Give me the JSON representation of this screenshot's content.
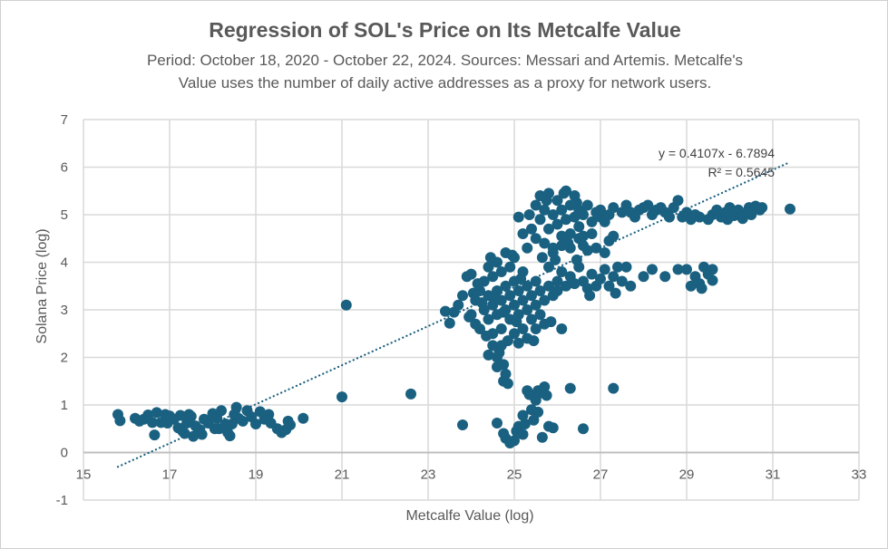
{
  "chart_data": {
    "type": "scatter",
    "title": "Regression of SOL's Price on Its Metcalfe Value",
    "subtitle_line1": "Period: October 18, 2020 - October 22, 2024. Sources: Messari and Artemis. Metcalfe's",
    "subtitle_line2": "Value uses the number of daily active addresses as a proxy for network users.",
    "xlabel": "Metcalfe Value (log)",
    "ylabel": "Solana Price (log)",
    "xlim": [
      15,
      33
    ],
    "ylim": [
      -1,
      7
    ],
    "xticks": [
      "15",
      "17",
      "19",
      "21",
      "23",
      "25",
      "27",
      "29",
      "31",
      "33"
    ],
    "yticks": [
      "-1",
      "0",
      "1",
      "2",
      "3",
      "4",
      "5",
      "6",
      "7"
    ],
    "grid": true,
    "marker_color": "#1a6080",
    "trendline": {
      "type": "linear",
      "slope": 0.4107,
      "intercept": -6.7894,
      "equation": "y = 0.4107x - 6.7894",
      "r2_label": "R² = 0.5645",
      "style": "dotted"
    },
    "points": [
      [
        15.8,
        0.8
      ],
      [
        15.85,
        0.67
      ],
      [
        16.2,
        0.72
      ],
      [
        16.3,
        0.66
      ],
      [
        16.4,
        0.7
      ],
      [
        16.5,
        0.79
      ],
      [
        16.6,
        0.63
      ],
      [
        16.65,
        0.37
      ],
      [
        16.7,
        0.84
      ],
      [
        16.8,
        0.63
      ],
      [
        16.9,
        0.8
      ],
      [
        17.0,
        0.77
      ],
      [
        17.1,
        0.7
      ],
      [
        17.2,
        0.52
      ],
      [
        17.25,
        0.78
      ],
      [
        17.3,
        0.45
      ],
      [
        17.35,
        0.4
      ],
      [
        17.4,
        0.62
      ],
      [
        17.5,
        0.76
      ],
      [
        17.6,
        0.56
      ],
      [
        17.7,
        0.48
      ],
      [
        17.75,
        0.38
      ],
      [
        17.8,
        0.7
      ],
      [
        17.9,
        0.62
      ],
      [
        18.0,
        0.82
      ],
      [
        18.05,
        0.5
      ],
      [
        18.1,
        0.72
      ],
      [
        18.2,
        0.88
      ],
      [
        18.3,
        0.6
      ],
      [
        18.35,
        0.42
      ],
      [
        18.4,
        0.35
      ],
      [
        18.5,
        0.8
      ],
      [
        18.55,
        0.95
      ],
      [
        18.6,
        0.72
      ],
      [
        18.7,
        0.66
      ],
      [
        18.8,
        0.88
      ],
      [
        18.9,
        0.75
      ],
      [
        19.0,
        0.6
      ],
      [
        19.1,
        0.86
      ],
      [
        19.2,
        0.7
      ],
      [
        19.3,
        0.8
      ],
      [
        19.35,
        0.62
      ],
      [
        19.5,
        0.5
      ],
      [
        19.6,
        0.42
      ],
      [
        19.7,
        0.48
      ],
      [
        19.75,
        0.66
      ],
      [
        19.8,
        0.58
      ],
      [
        20.1,
        0.72
      ],
      [
        18.15,
        0.5
      ],
      [
        17.55,
        0.34
      ],
      [
        18.45,
        0.6
      ],
      [
        16.95,
        0.62
      ],
      [
        17.45,
        0.8
      ],
      [
        21.0,
        1.17
      ],
      [
        21.1,
        3.1
      ],
      [
        22.6,
        1.23
      ],
      [
        23.8,
        0.58
      ],
      [
        26.3,
        1.35
      ],
      [
        27.3,
        1.35
      ],
      [
        26.6,
        0.5
      ],
      [
        31.4,
        5.12
      ],
      [
        24.6,
        0.62
      ],
      [
        24.75,
        0.4
      ],
      [
        24.8,
        0.3
      ],
      [
        24.9,
        0.2
      ],
      [
        25.0,
        0.25
      ],
      [
        25.05,
        0.45
      ],
      [
        25.1,
        0.55
      ],
      [
        25.2,
        0.38
      ],
      [
        25.2,
        0.78
      ],
      [
        25.3,
        1.3
      ],
      [
        25.35,
        1.22
      ],
      [
        25.4,
        0.9
      ],
      [
        25.45,
        0.68
      ],
      [
        25.5,
        1.1
      ],
      [
        25.55,
        1.3
      ],
      [
        25.6,
        1.25
      ],
      [
        25.65,
        0.32
      ],
      [
        25.7,
        1.38
      ],
      [
        25.75,
        1.2
      ],
      [
        25.8,
        0.55
      ],
      [
        25.9,
        0.52
      ],
      [
        25.45,
        1.18
      ],
      [
        25.25,
        0.6
      ],
      [
        25.55,
        0.85
      ],
      [
        24.6,
        2.0
      ],
      [
        24.65,
        2.1
      ],
      [
        24.75,
        1.85
      ],
      [
        24.8,
        1.65
      ],
      [
        24.75,
        1.5
      ],
      [
        24.85,
        1.45
      ],
      [
        24.5,
        2.25
      ],
      [
        24.7,
        2.25
      ],
      [
        24.4,
        2.05
      ],
      [
        24.6,
        1.8
      ],
      [
        23.4,
        2.97
      ],
      [
        23.5,
        2.72
      ],
      [
        23.6,
        2.95
      ],
      [
        23.7,
        3.1
      ],
      [
        23.8,
        3.3
      ],
      [
        23.9,
        3.7
      ],
      [
        24.0,
        3.75
      ],
      [
        24.0,
        2.9
      ],
      [
        24.1,
        3.2
      ],
      [
        24.1,
        2.7
      ],
      [
        24.2,
        3.4
      ],
      [
        24.2,
        2.6
      ],
      [
        24.3,
        3.0
      ],
      [
        24.3,
        3.6
      ],
      [
        24.4,
        2.8
      ],
      [
        24.4,
        3.3
      ],
      [
        24.4,
        3.9
      ],
      [
        24.5,
        3.1
      ],
      [
        24.5,
        2.5
      ],
      [
        24.5,
        3.7
      ],
      [
        24.6,
        3.4
      ],
      [
        24.6,
        2.9
      ],
      [
        24.6,
        4.0
      ],
      [
        24.7,
        3.2
      ],
      [
        24.7,
        2.6
      ],
      [
        24.7,
        3.8
      ],
      [
        24.8,
        3.0
      ],
      [
        24.8,
        3.5
      ],
      [
        24.8,
        4.2
      ],
      [
        24.9,
        2.8
      ],
      [
        24.9,
        3.3
      ],
      [
        24.9,
        3.9
      ],
      [
        25.0,
        3.1
      ],
      [
        25.0,
        2.5
      ],
      [
        25.0,
        3.6
      ],
      [
        25.0,
        4.1
      ],
      [
        25.1,
        2.9
      ],
      [
        25.1,
        3.4
      ],
      [
        25.1,
        2.3
      ],
      [
        25.2,
        3.2
      ],
      [
        25.2,
        2.6
      ],
      [
        25.2,
        3.8
      ],
      [
        25.3,
        3.0
      ],
      [
        25.3,
        2.4
      ],
      [
        25.3,
        3.5
      ],
      [
        25.4,
        2.8
      ],
      [
        25.4,
        3.3
      ],
      [
        25.5,
        3.1
      ],
      [
        25.5,
        2.6
      ],
      [
        25.5,
        3.6
      ],
      [
        25.6,
        2.9
      ],
      [
        25.6,
        3.4
      ],
      [
        25.7,
        3.2
      ],
      [
        25.7,
        2.7
      ],
      [
        25.8,
        3.5
      ],
      [
        25.9,
        3.3
      ],
      [
        26.0,
        3.4
      ],
      [
        26.1,
        2.6
      ],
      [
        25.85,
        2.75
      ],
      [
        24.25,
        3.15
      ],
      [
        23.95,
        2.85
      ],
      [
        24.15,
        3.55
      ],
      [
        24.55,
        3.25
      ],
      [
        24.35,
        2.45
      ],
      [
        24.75,
        2.95
      ],
      [
        25.05,
        2.75
      ],
      [
        25.15,
        3.65
      ],
      [
        25.45,
        2.35
      ],
      [
        24.45,
        4.1
      ],
      [
        24.05,
        3.35
      ],
      [
        24.85,
        2.35
      ],
      [
        24.95,
        4.15
      ],
      [
        26.0,
        3.6
      ],
      [
        26.1,
        3.8
      ],
      [
        26.2,
        3.5
      ],
      [
        26.3,
        3.7
      ],
      [
        26.4,
        3.55
      ],
      [
        26.5,
        3.9
      ],
      [
        26.6,
        3.6
      ],
      [
        26.7,
        3.45
      ],
      [
        26.8,
        3.75
      ],
      [
        26.9,
        3.5
      ],
      [
        27.0,
        3.65
      ],
      [
        27.1,
        3.85
      ],
      [
        27.2,
        3.5
      ],
      [
        27.3,
        3.7
      ],
      [
        27.4,
        3.9
      ],
      [
        27.5,
        3.6
      ],
      [
        27.35,
        3.35
      ],
      [
        26.75,
        3.3
      ],
      [
        26.45,
        4.05
      ],
      [
        26.7,
        4.25
      ],
      [
        26.9,
        4.3
      ],
      [
        27.2,
        4.45
      ],
      [
        27.3,
        4.55
      ],
      [
        26.5,
        4.5
      ],
      [
        27.1,
        4.2
      ],
      [
        27.6,
        3.9
      ],
      [
        27.7,
        3.5
      ],
      [
        26.25,
        4.4
      ],
      [
        25.8,
        3.9
      ],
      [
        25.9,
        4.2
      ],
      [
        26.1,
        4.35
      ],
      [
        28.0,
        3.7
      ],
      [
        28.5,
        3.7
      ],
      [
        28.8,
        3.85
      ],
      [
        29.0,
        3.85
      ],
      [
        29.2,
        3.7
      ],
      [
        29.3,
        3.55
      ],
      [
        29.4,
        3.9
      ],
      [
        29.5,
        3.75
      ],
      [
        29.6,
        3.85
      ],
      [
        29.6,
        3.62
      ],
      [
        29.1,
        3.5
      ],
      [
        29.35,
        3.45
      ],
      [
        28.2,
        3.85
      ],
      [
        25.1,
        4.95
      ],
      [
        25.2,
        4.6
      ],
      [
        25.3,
        4.3
      ],
      [
        25.4,
        4.7
      ],
      [
        25.5,
        5.2
      ],
      [
        25.5,
        4.5
      ],
      [
        25.6,
        5.4
      ],
      [
        25.6,
        4.9
      ],
      [
        25.7,
        4.4
      ],
      [
        25.7,
        5.1
      ],
      [
        25.8,
        5.45
      ],
      [
        25.8,
        4.7
      ],
      [
        25.9,
        5.0
      ],
      [
        25.9,
        4.3
      ],
      [
        26.0,
        5.3
      ],
      [
        26.0,
        4.8
      ],
      [
        26.1,
        4.55
      ],
      [
        26.1,
        5.1
      ],
      [
        26.2,
        5.5
      ],
      [
        26.2,
        4.9
      ],
      [
        26.3,
        5.2
      ],
      [
        26.3,
        4.6
      ],
      [
        26.4,
        4.95
      ],
      [
        26.4,
        5.4
      ],
      [
        26.5,
        4.75
      ],
      [
        26.5,
        5.1
      ],
      [
        26.6,
        4.55
      ],
      [
        26.6,
        5.0
      ],
      [
        26.7,
        5.2
      ],
      [
        26.8,
        4.85
      ],
      [
        26.8,
        4.6
      ],
      [
        26.9,
        5.05
      ],
      [
        27.0,
        4.95
      ],
      [
        25.65,
        4.1
      ],
      [
        25.95,
        4.05
      ],
      [
        26.3,
        4.3
      ],
      [
        25.35,
        5.0
      ],
      [
        25.75,
        5.3
      ],
      [
        26.15,
        5.45
      ],
      [
        26.45,
        5.25
      ],
      [
        26.6,
        4.35
      ],
      [
        27.0,
        5.1
      ],
      [
        27.2,
        5.0
      ],
      [
        27.3,
        5.15
      ],
      [
        27.5,
        5.05
      ],
      [
        27.6,
        5.2
      ],
      [
        27.8,
        4.95
      ],
      [
        27.9,
        5.1
      ],
      [
        28.0,
        5.15
      ],
      [
        28.2,
        5.0
      ],
      [
        28.3,
        5.1
      ],
      [
        28.5,
        5.05
      ],
      [
        28.6,
        4.95
      ],
      [
        28.7,
        5.15
      ],
      [
        28.8,
        5.3
      ],
      [
        28.9,
        4.95
      ],
      [
        29.0,
        5.05
      ],
      [
        29.1,
        4.9
      ],
      [
        29.3,
        4.95
      ],
      [
        29.5,
        4.9
      ],
      [
        29.6,
        5.0
      ],
      [
        29.8,
        4.95
      ],
      [
        29.9,
        5.05
      ],
      [
        30.0,
        5.15
      ],
      [
        30.1,
        4.98
      ],
      [
        30.2,
        5.1
      ],
      [
        30.3,
        4.92
      ],
      [
        30.4,
        5.05
      ],
      [
        30.5,
        5.0
      ],
      [
        30.6,
        5.18
      ],
      [
        30.7,
        5.1
      ],
      [
        30.75,
        5.15
      ],
      [
        27.1,
        4.85
      ],
      [
        27.7,
        5.05
      ],
      [
        28.1,
        5.2
      ],
      [
        28.4,
        5.15
      ],
      [
        29.2,
        5.0
      ],
      [
        29.7,
        5.1
      ],
      [
        30.45,
        5.15
      ],
      [
        29.95,
        4.9
      ]
    ]
  }
}
